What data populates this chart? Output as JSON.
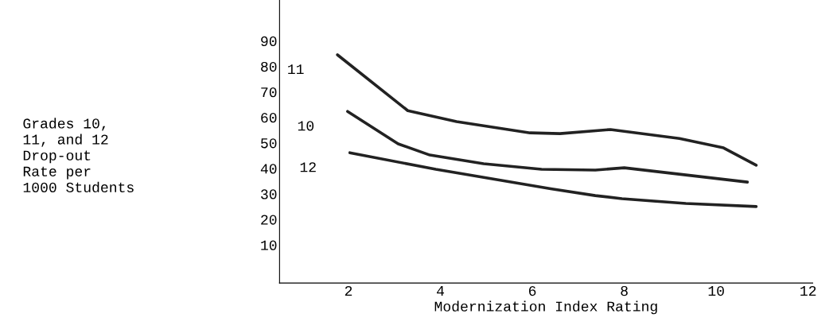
{
  "chart_data": {
    "type": "line",
    "xlabel": "Modernization Index Rating",
    "annotations": [
      "Grades 10,\n11, and 12\nDrop-out\nRate per\n1000 Students"
    ],
    "xlim": [
      0.5,
      12.1
    ],
    "xticks": [
      2,
      4,
      6,
      8,
      10,
      12
    ],
    "ylim": [
      -5,
      106
    ],
    "yticks": [
      10,
      20,
      30,
      40,
      50,
      60,
      70,
      80,
      90
    ],
    "grid": false,
    "legend": false,
    "marker": "none",
    "line_style": "solid",
    "series": [
      {
        "name": "11",
        "color": "#222222",
        "x": [
          1.76,
          3.29,
          4.35,
          5.95,
          6.6,
          7.7,
          9.2,
          10.16,
          10.87
        ],
        "values": [
          84.5,
          62.6,
          58.3,
          53.9,
          53.6,
          55.2,
          51.7,
          48.0,
          41.2
        ]
      },
      {
        "name": "10",
        "color": "#222222",
        "x": [
          1.98,
          3.08,
          3.77,
          4.94,
          6.2,
          7.37,
          8.0,
          10.68
        ],
        "values": [
          62.3,
          49.6,
          45.2,
          41.8,
          39.6,
          39.3,
          40.2,
          34.6
        ]
      },
      {
        "name": "12",
        "color": "#222222",
        "x": [
          2.03,
          3.9,
          6.4,
          7.37,
          7.95,
          9.34,
          10.87
        ],
        "values": [
          46.1,
          39.6,
          32.0,
          29.3,
          28.1,
          26.2,
          25.0
        ]
      }
    ]
  }
}
